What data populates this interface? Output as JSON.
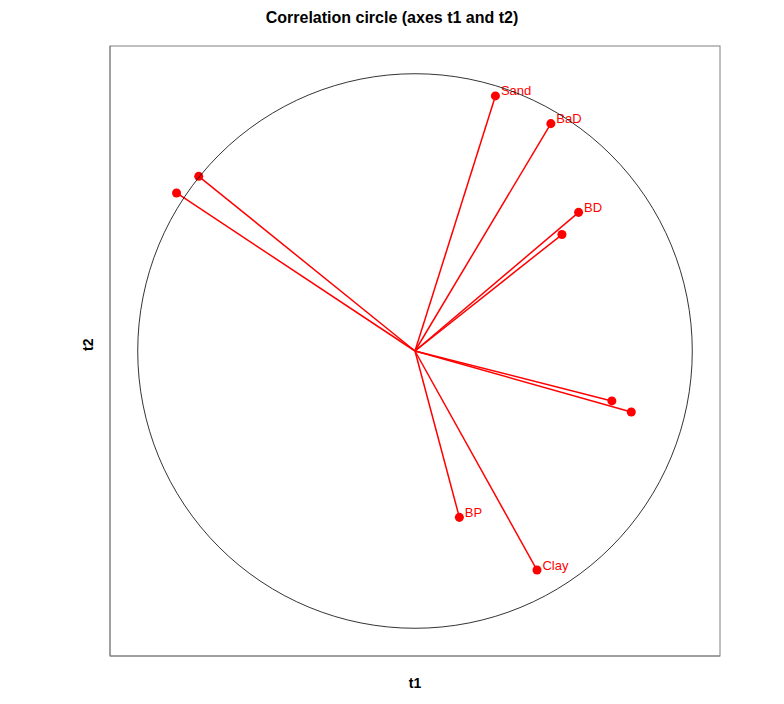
{
  "chart_data": {
    "type": "scatter",
    "title": "Correlation circle (axes t1 and t2)",
    "x_label": "t1",
    "y_label": "t2",
    "x": [
      0.29,
      0.49,
      0.59,
      0.16,
      0.44,
      -0.78,
      -0.86,
      0.53,
      0.71,
      0.78
    ],
    "y": [
      0.92,
      0.82,
      0.5,
      -0.6,
      -0.79,
      0.63,
      0.57,
      0.42,
      -0.18,
      -0.22
    ],
    "labels": [
      "Sand",
      "BaD",
      "BD",
      "BP",
      "Clay",
      null,
      null,
      null,
      null,
      null
    ],
    "color": "#ff0000",
    "marker": "circle",
    "xlim": [
      -1.1,
      1.1
    ],
    "ylim": [
      -1.1,
      1.1
    ],
    "tick_labels": false,
    "grid": false
  }
}
